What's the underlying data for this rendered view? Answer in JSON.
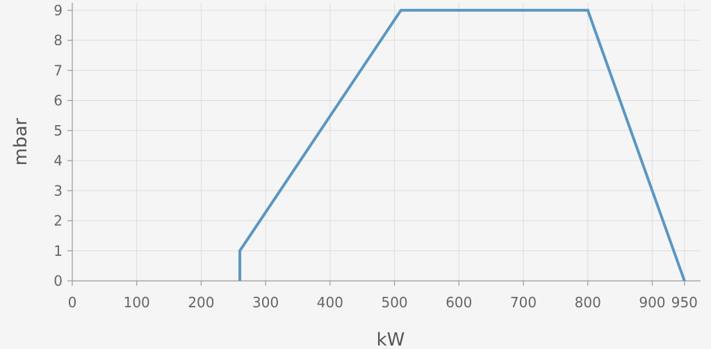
{
  "chart_data": {
    "type": "line",
    "title": "",
    "xlabel": "kW",
    "ylabel": "mbar",
    "xlim": [
      0,
      975
    ],
    "ylim": [
      0,
      9.25
    ],
    "x_ticks": [
      0,
      100,
      200,
      300,
      400,
      500,
      600,
      700,
      800,
      900,
      950
    ],
    "x_tick_labels": [
      "0",
      "100",
      "200",
      "300",
      "400",
      "500",
      "600",
      "700",
      "800",
      "900",
      "950"
    ],
    "y_ticks": [
      0,
      1,
      2,
      3,
      4,
      5,
      6,
      7,
      8,
      9
    ],
    "y_tick_labels": [
      "0",
      "1",
      "2",
      "3",
      "4",
      "5",
      "6",
      "7",
      "8",
      "9"
    ],
    "grid": true,
    "legend": "none",
    "series": [
      {
        "color": "#5b96c2",
        "x": [
          260,
          260,
          510,
          800,
          950
        ],
        "y": [
          0,
          1,
          9,
          9,
          0
        ]
      }
    ]
  }
}
